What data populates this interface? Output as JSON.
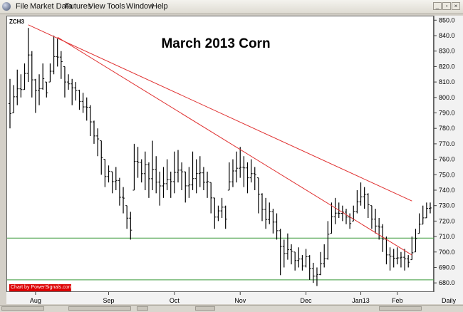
{
  "menu": [
    "File",
    "Market Data",
    "Futures",
    "View",
    "Tools",
    "Window",
    "Help"
  ],
  "window_buttons": {
    "minimize": "_",
    "restore": "▫",
    "close": "×"
  },
  "chart": {
    "symbol": "ZCH3",
    "title": "March 2013 Corn",
    "credit": "Chart by PowerSignals.com",
    "interval": "Daily",
    "price_ticks": [
      850,
      840,
      830,
      820,
      810,
      800,
      790,
      780,
      770,
      760,
      750,
      740,
      730,
      720,
      710,
      700,
      690,
      680
    ],
    "month_labels": [
      "Aug",
      "Sep",
      "Oct",
      "Nov",
      "Dec",
      "Jan13",
      "Feb"
    ]
  },
  "chart_data": {
    "type": "ohlc",
    "title": "March 2013 Corn",
    "ylim": [
      675,
      852
    ],
    "y_ticks": [
      680,
      690,
      700,
      710,
      720,
      730,
      740,
      750,
      760,
      770,
      780,
      790,
      800,
      810,
      820,
      830,
      840,
      850
    ],
    "x_ticks": [
      "Aug",
      "Sep",
      "Oct",
      "Nov",
      "Dec",
      "Jan13",
      "Feb"
    ],
    "daily_lows_highs": [
      {
        "low": 780,
        "high": 812
      },
      {
        "low": 790,
        "high": 808
      },
      {
        "low": 795,
        "high": 818
      },
      {
        "low": 800,
        "high": 815
      },
      {
        "low": 805,
        "high": 822
      },
      {
        "low": 810,
        "high": 845
      },
      {
        "low": 800,
        "high": 830
      },
      {
        "low": 790,
        "high": 812
      },
      {
        "low": 795,
        "high": 815
      },
      {
        "low": 805,
        "high": 822
      },
      {
        "low": 800,
        "high": 810
      },
      {
        "low": 810,
        "high": 822
      },
      {
        "low": 815,
        "high": 840
      },
      {
        "low": 820,
        "high": 838
      },
      {
        "low": 812,
        "high": 830
      },
      {
        "low": 800,
        "high": 820
      },
      {
        "low": 805,
        "high": 815
      },
      {
        "low": 795,
        "high": 812
      },
      {
        "low": 798,
        "high": 810
      },
      {
        "low": 792,
        "high": 805
      },
      {
        "low": 790,
        "high": 803
      },
      {
        "low": 785,
        "high": 800
      },
      {
        "low": 775,
        "high": 795
      },
      {
        "low": 770,
        "high": 785
      },
      {
        "low": 762,
        "high": 780
      },
      {
        "low": 750,
        "high": 772
      },
      {
        "low": 742,
        "high": 760
      },
      {
        "low": 745,
        "high": 756
      },
      {
        "low": 738,
        "high": 752
      },
      {
        "low": 740,
        "high": 755
      },
      {
        "low": 730,
        "high": 748
      },
      {
        "low": 725,
        "high": 742
      },
      {
        "low": 715,
        "high": 730
      },
      {
        "low": 708,
        "high": 726
      },
      {
        "low": 740,
        "high": 770
      },
      {
        "low": 748,
        "high": 768
      },
      {
        "low": 745,
        "high": 760
      },
      {
        "low": 740,
        "high": 765
      },
      {
        "low": 735,
        "high": 758
      },
      {
        "low": 740,
        "high": 772
      },
      {
        "low": 738,
        "high": 762
      },
      {
        "low": 730,
        "high": 752
      },
      {
        "low": 735,
        "high": 755
      },
      {
        "low": 740,
        "high": 760
      },
      {
        "low": 735,
        "high": 752
      },
      {
        "low": 738,
        "high": 765
      },
      {
        "low": 745,
        "high": 766
      },
      {
        "low": 740,
        "high": 758
      },
      {
        "low": 732,
        "high": 752
      },
      {
        "low": 735,
        "high": 755
      },
      {
        "low": 740,
        "high": 765
      },
      {
        "low": 738,
        "high": 760
      },
      {
        "low": 742,
        "high": 762
      },
      {
        "low": 740,
        "high": 755
      },
      {
        "low": 735,
        "high": 752
      },
      {
        "low": 725,
        "high": 745
      },
      {
        "low": 715,
        "high": 735
      },
      {
        "low": 720,
        "high": 730
      },
      {
        "low": 722,
        "high": 735
      },
      {
        "low": 715,
        "high": 730
      },
      {
        "low": 740,
        "high": 758
      },
      {
        "low": 742,
        "high": 760
      },
      {
        "low": 745,
        "high": 765
      },
      {
        "low": 748,
        "high": 768
      },
      {
        "low": 742,
        "high": 762
      },
      {
        "low": 738,
        "high": 758
      },
      {
        "low": 745,
        "high": 760
      },
      {
        "low": 740,
        "high": 755
      },
      {
        "low": 725,
        "high": 748
      },
      {
        "low": 720,
        "high": 738
      },
      {
        "low": 715,
        "high": 735
      },
      {
        "low": 718,
        "high": 732
      },
      {
        "low": 712,
        "high": 728
      },
      {
        "low": 708,
        "high": 725
      },
      {
        "low": 685,
        "high": 715
      },
      {
        "low": 690,
        "high": 708
      },
      {
        "low": 695,
        "high": 712
      },
      {
        "low": 692,
        "high": 705
      },
      {
        "low": 688,
        "high": 700
      },
      {
        "low": 690,
        "high": 703
      },
      {
        "low": 688,
        "high": 698
      },
      {
        "low": 690,
        "high": 702
      },
      {
        "low": 682,
        "high": 698
      },
      {
        "low": 680,
        "high": 693
      },
      {
        "low": 678,
        "high": 690
      },
      {
        "low": 685,
        "high": 700
      },
      {
        "low": 690,
        "high": 705
      },
      {
        "low": 695,
        "high": 720
      },
      {
        "low": 712,
        "high": 732
      },
      {
        "low": 718,
        "high": 735
      },
      {
        "low": 722,
        "high": 732
      },
      {
        "low": 720,
        "high": 730
      },
      {
        "low": 718,
        "high": 728
      },
      {
        "low": 715,
        "high": 725
      },
      {
        "low": 720,
        "high": 730
      },
      {
        "low": 725,
        "high": 740
      },
      {
        "low": 730,
        "high": 745
      },
      {
        "low": 728,
        "high": 742
      },
      {
        "low": 722,
        "high": 738
      },
      {
        "low": 715,
        "high": 730
      },
      {
        "low": 712,
        "high": 728
      },
      {
        "low": 708,
        "high": 722
      },
      {
        "low": 700,
        "high": 718
      },
      {
        "low": 692,
        "high": 710
      },
      {
        "low": 688,
        "high": 703
      },
      {
        "low": 690,
        "high": 702
      },
      {
        "low": 692,
        "high": 703
      },
      {
        "low": 690,
        "high": 700
      },
      {
        "low": 688,
        "high": 702
      },
      {
        "low": 690,
        "high": 698
      },
      {
        "low": 695,
        "high": 710
      },
      {
        "low": 700,
        "high": 715
      },
      {
        "low": 712,
        "high": 725
      },
      {
        "low": 718,
        "high": 730
      },
      {
        "low": 722,
        "high": 732
      },
      {
        "low": 725,
        "high": 732
      }
    ],
    "horizontal_lines": [
      {
        "price": 709,
        "color": "#3a9a3a"
      },
      {
        "price": 682,
        "color": "#3a9a3a"
      }
    ],
    "trend_lines": [
      {
        "from": {
          "index": 5,
          "price": 847
        },
        "to": {
          "index": 110,
          "price": 733
        },
        "color": "#e03030"
      },
      {
        "from": {
          "index": 13,
          "price": 839
        },
        "to": {
          "index": 110,
          "price": 698
        },
        "color": "#e03030"
      }
    ],
    "bar_color": "#000000"
  }
}
